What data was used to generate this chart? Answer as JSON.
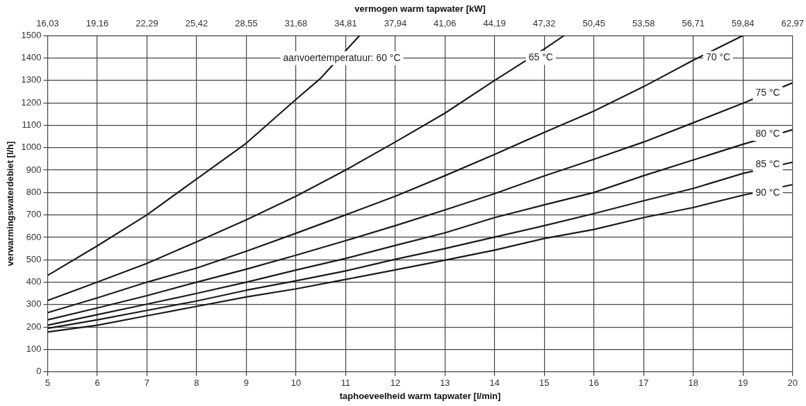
{
  "chart_data": {
    "type": "line",
    "xlabel": "taphoeveelheid warm tapwater [l/min]",
    "ylabel": "verwarmingswaterdebiet [l/h]",
    "x2label": "vermogen warm tapwater [kW]",
    "xlim": [
      5,
      20
    ],
    "xticks": [
      5,
      6,
      7,
      8,
      9,
      10,
      11,
      12,
      13,
      14,
      15,
      16,
      17,
      18,
      19,
      20
    ],
    "ylim": [
      0,
      1500
    ],
    "yticks": [
      0,
      100,
      200,
      300,
      400,
      500,
      600,
      700,
      800,
      900,
      1000,
      1100,
      1200,
      1300,
      1400,
      1500
    ],
    "x2lim": [
      16.03,
      62.97
    ],
    "x2ticks": [
      {
        "value": 16.03,
        "label": "16,03"
      },
      {
        "value": 19.16,
        "label": "19,16"
      },
      {
        "value": 22.29,
        "label": "22,29"
      },
      {
        "value": 25.42,
        "label": "25,42"
      },
      {
        "value": 28.55,
        "label": "28,55"
      },
      {
        "value": 31.68,
        "label": "31,68"
      },
      {
        "value": 34.81,
        "label": "34,81"
      },
      {
        "value": 37.94,
        "label": "37,94"
      },
      {
        "value": 41.06,
        "label": "41,06"
      },
      {
        "value": 44.19,
        "label": "44,19"
      },
      {
        "value": 47.32,
        "label": "47,32"
      },
      {
        "value": 50.45,
        "label": "50,45"
      },
      {
        "value": 53.58,
        "label": "53,58"
      },
      {
        "value": 56.71,
        "label": "56,71"
      },
      {
        "value": 59.84,
        "label": "59,84"
      },
      {
        "value": 62.97,
        "label": "62,97"
      }
    ],
    "grid": true,
    "legend": false,
    "marker": "none",
    "line_style": "solid",
    "series": [
      {
        "color": "#1a1a1a",
        "x": [
          5,
          6,
          7,
          8,
          9,
          10,
          10.5,
          11.28
        ],
        "values": [
          430,
          562,
          700,
          860,
          1020,
          1215,
          1310,
          1500
        ]
      },
      {
        "color": "#1a1a1a",
        "x": [
          5,
          6,
          7,
          8,
          9,
          10,
          11,
          12,
          13,
          14,
          15,
          15.4
        ],
        "values": [
          318,
          400,
          484,
          580,
          678,
          783,
          900,
          1025,
          1154,
          1300,
          1440,
          1500
        ]
      },
      {
        "color": "#1a1a1a",
        "x": [
          5,
          6,
          7,
          8,
          9,
          10,
          11,
          12,
          13,
          14,
          15,
          16,
          17,
          18,
          19
        ],
        "values": [
          264,
          330,
          400,
          463,
          538,
          618,
          700,
          783,
          875,
          970,
          1068,
          1163,
          1272,
          1390,
          1500
        ]
      },
      {
        "color": "#1a1a1a",
        "x": [
          5,
          6,
          7,
          8,
          9,
          10,
          11,
          12,
          13,
          14,
          15,
          16,
          17,
          18,
          19,
          20
        ],
        "values": [
          232,
          285,
          340,
          400,
          458,
          520,
          585,
          652,
          722,
          795,
          874,
          948,
          1025,
          1111,
          1198,
          1289
        ]
      },
      {
        "color": "#1a1a1a",
        "x": [
          5,
          6,
          7,
          8,
          9,
          10,
          11,
          12,
          13,
          14,
          15,
          16,
          17,
          18,
          19,
          20
        ],
        "values": [
          208,
          255,
          302,
          350,
          400,
          454,
          506,
          564,
          620,
          688,
          745,
          800,
          875,
          945,
          1015,
          1080
        ]
      },
      {
        "color": "#1a1a1a",
        "x": [
          5,
          6,
          7,
          8,
          9,
          10,
          11,
          12,
          13,
          14,
          15,
          16,
          17,
          18,
          19,
          20
        ],
        "values": [
          194,
          232,
          274,
          316,
          364,
          406,
          450,
          502,
          550,
          601,
          652,
          706,
          763,
          818,
          885,
          935
        ]
      },
      {
        "color": "#1a1a1a",
        "x": [
          5,
          6,
          7,
          8,
          9,
          10,
          11,
          12,
          13,
          14,
          15,
          16,
          17,
          18,
          19,
          20
        ],
        "values": [
          178,
          208,
          250,
          292,
          334,
          370,
          412,
          455,
          498,
          543,
          595,
          635,
          688,
          733,
          788,
          835
        ]
      }
    ],
    "annotations": [
      "aanvoertemperatuur: 60 °C",
      {
        "text": "65 °C",
        "x": 14.93,
        "y": 1400
      },
      {
        "text": "70 °C",
        "x": 18.5,
        "y": 1400
      },
      {
        "text": "75 °C",
        "x": 19.5,
        "y": 1242
      },
      {
        "text": "80 °C",
        "x": 19.5,
        "y": 1061
      },
      {
        "text": "85 °C",
        "x": 19.5,
        "y": 924
      },
      {
        "text": "90 °C",
        "x": 19.5,
        "y": 797
      }
    ]
  }
}
